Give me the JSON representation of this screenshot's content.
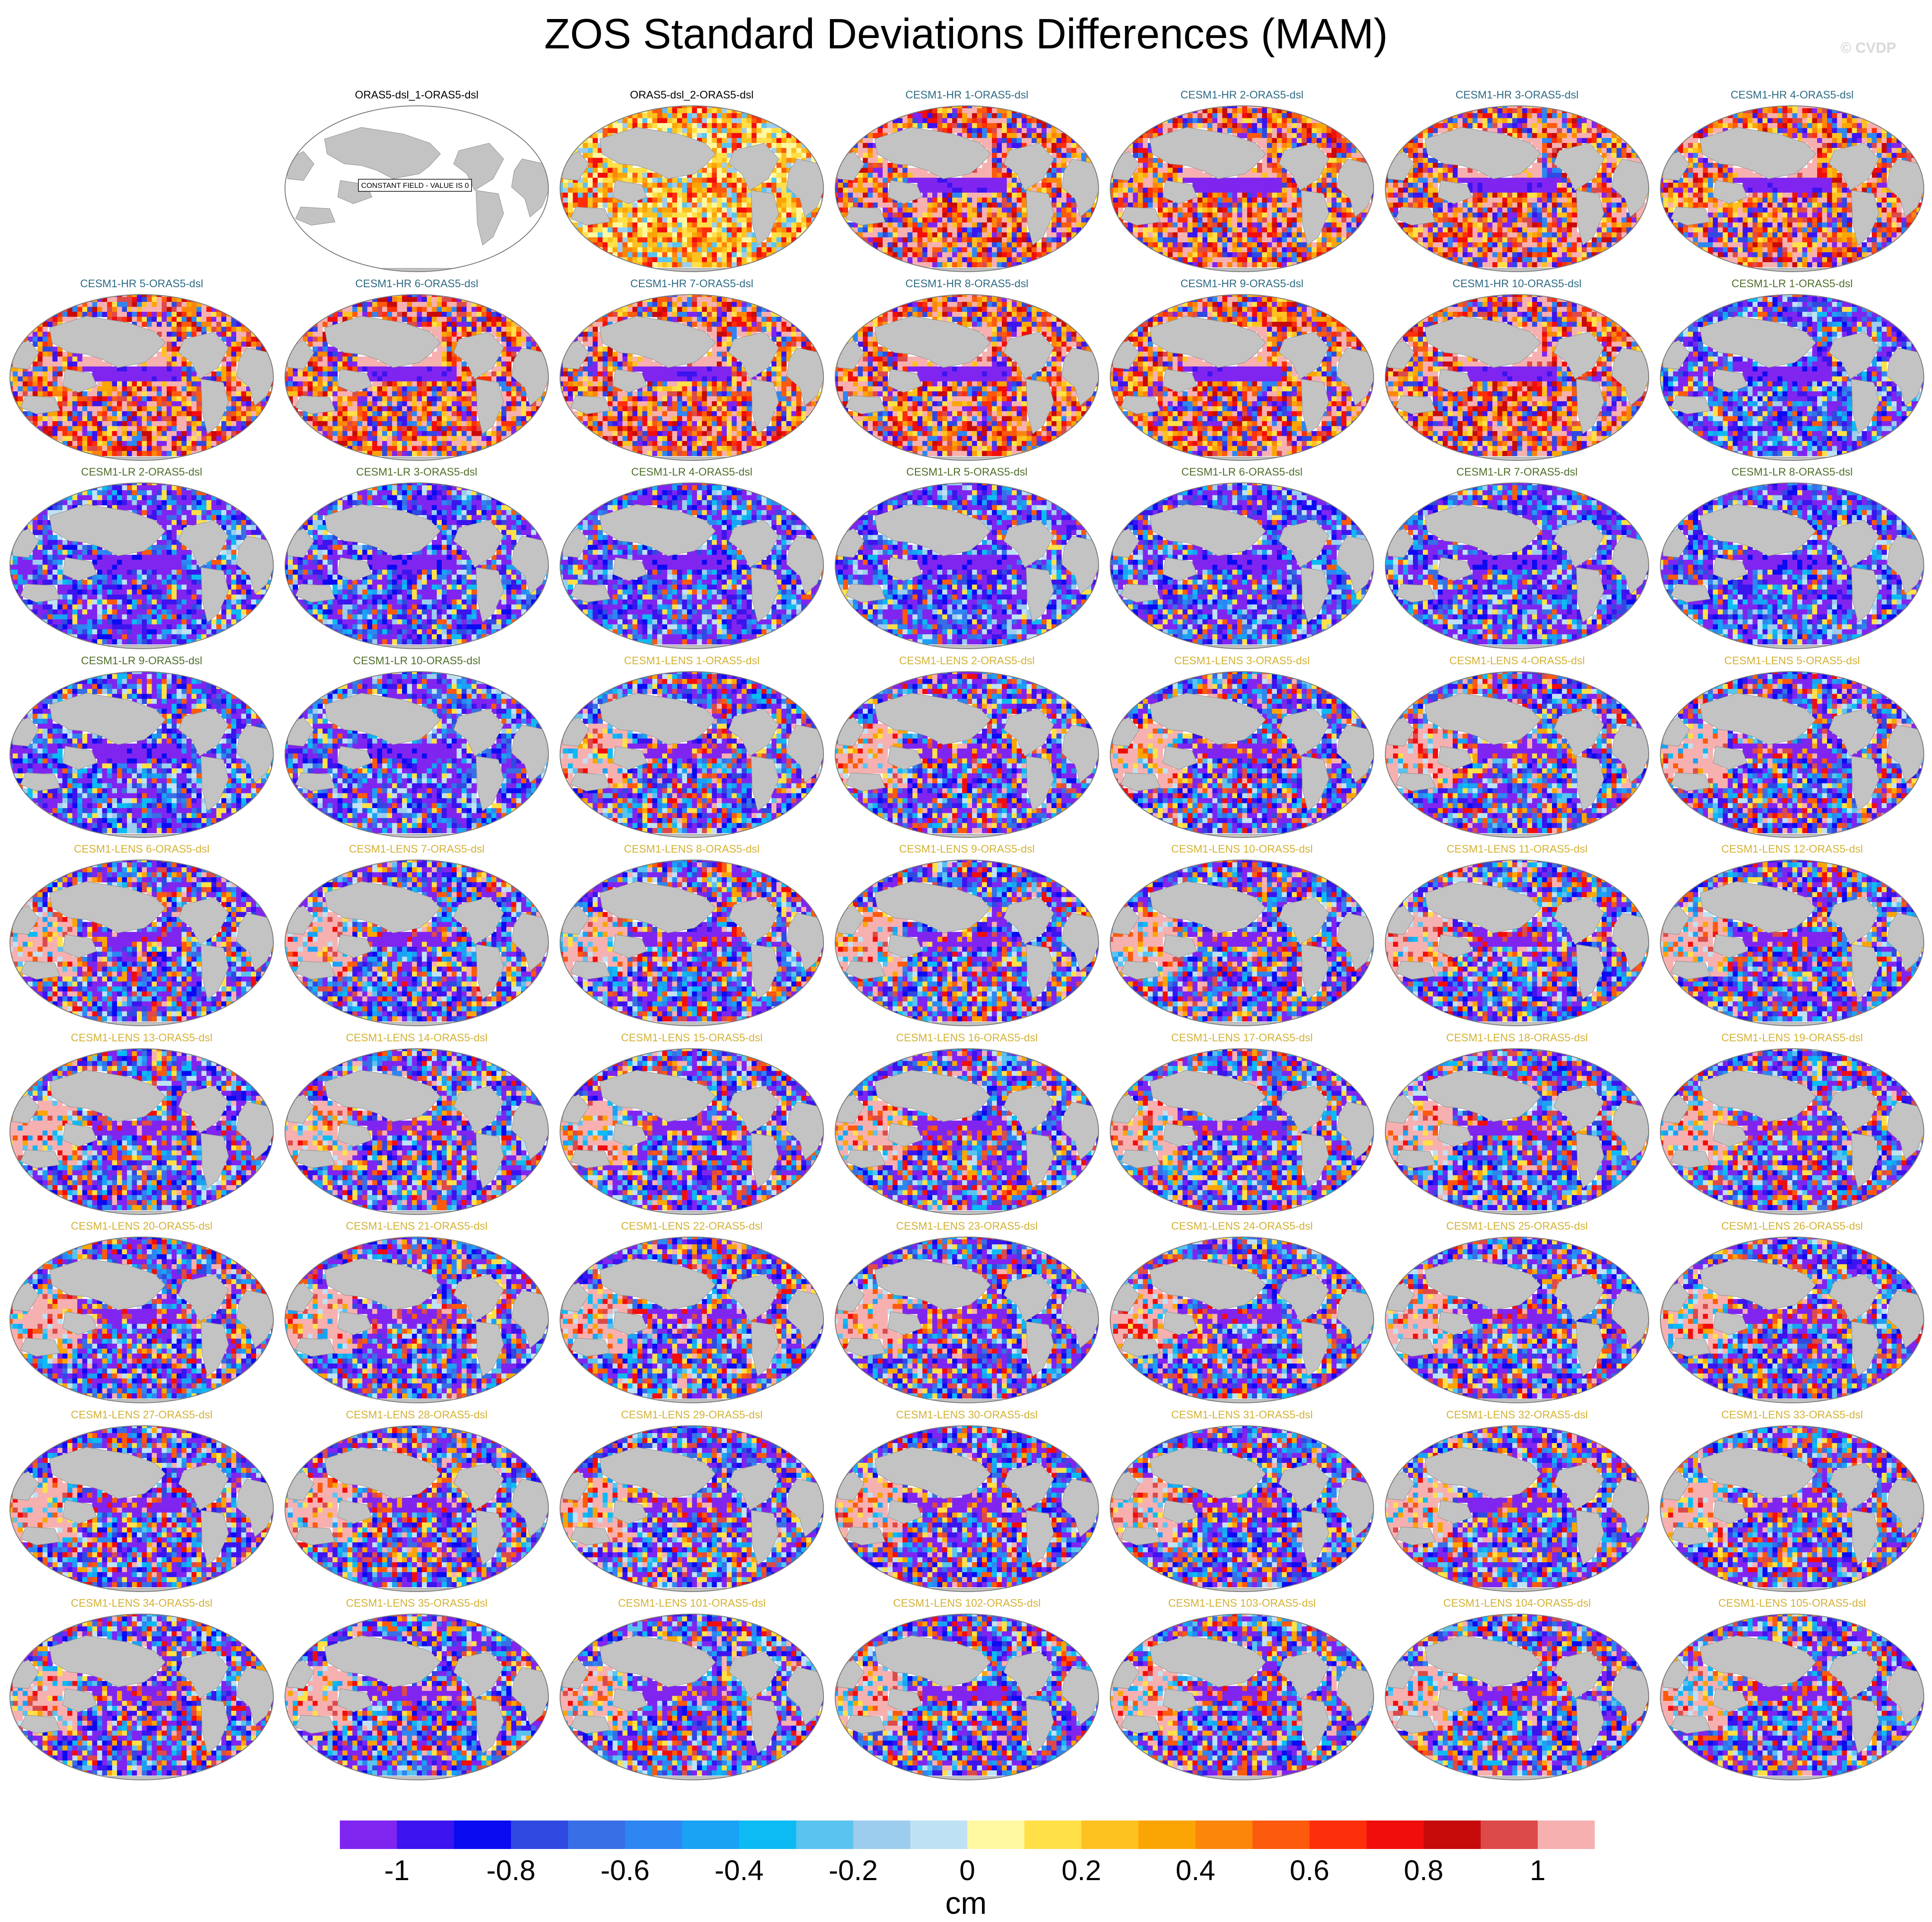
{
  "title": "ZOS Standard Deviations Differences (MAM)",
  "watermark": "© CVDP",
  "colors": {
    "land": "#c3c3c3",
    "map_outline": "#7a7a7a",
    "palette": [
      "#8025f0",
      "#3c14ee",
      "#0b0bf2",
      "#3049e0",
      "#386fe6",
      "#2e86f3",
      "#1aa2f4",
      "#0cbbf4",
      "#5ac3f0",
      "#9dcdee",
      "#bfe1f4",
      "#fff8a0",
      "#ffe048",
      "#fdc120",
      "#fba505",
      "#fc860a",
      "#fc5a0c",
      "#fc2f0a",
      "#f20d0d",
      "#c70a0a",
      "#dc4a4a",
      "#f7b0b0"
    ]
  },
  "colorbar": {
    "ticks": [
      "-1",
      "-0.8",
      "-0.6",
      "-0.4",
      "-0.2",
      "0",
      "0.2",
      "0.4",
      "0.6",
      "0.8",
      "1"
    ],
    "unit": "cm"
  },
  "panels": [
    {
      "label": "ORAS5-dsl_1-ORAS5-dsl",
      "group": "obs",
      "style": "constant",
      "constant_text": "CONSTANT FIELD - VALUE IS 0"
    },
    {
      "label": "ORAS5-dsl_2-ORAS5-dsl",
      "group": "obs",
      "style": "obs"
    },
    {
      "label": "CESM1-HR 1-ORAS5-dsl",
      "group": "hr",
      "style": "hr"
    },
    {
      "label": "CESM1-HR 2-ORAS5-dsl",
      "group": "hr",
      "style": "hr"
    },
    {
      "label": "CESM1-HR 3-ORAS5-dsl",
      "group": "hr",
      "style": "hr"
    },
    {
      "label": "CESM1-HR 4-ORAS5-dsl",
      "group": "hr",
      "style": "hr"
    },
    {
      "label": "CESM1-HR 5-ORAS5-dsl",
      "group": "hr",
      "style": "hr"
    },
    {
      "label": "CESM1-HR 6-ORAS5-dsl",
      "group": "hr",
      "style": "hr"
    },
    {
      "label": "CESM1-HR 7-ORAS5-dsl",
      "group": "hr",
      "style": "hr"
    },
    {
      "label": "CESM1-HR 8-ORAS5-dsl",
      "group": "hr",
      "style": "hr"
    },
    {
      "label": "CESM1-HR 9-ORAS5-dsl",
      "group": "hr",
      "style": "hr"
    },
    {
      "label": "CESM1-HR 10-ORAS5-dsl",
      "group": "hr",
      "style": "hr"
    },
    {
      "label": "CESM1-LR 1-ORAS5-dsl",
      "group": "lr",
      "style": "lr"
    },
    {
      "label": "CESM1-LR 2-ORAS5-dsl",
      "group": "lr",
      "style": "lr"
    },
    {
      "label": "CESM1-LR 3-ORAS5-dsl",
      "group": "lr",
      "style": "lr"
    },
    {
      "label": "CESM1-LR 4-ORAS5-dsl",
      "group": "lr",
      "style": "lr"
    },
    {
      "label": "CESM1-LR 5-ORAS5-dsl",
      "group": "lr",
      "style": "lr"
    },
    {
      "label": "CESM1-LR 6-ORAS5-dsl",
      "group": "lr",
      "style": "lr"
    },
    {
      "label": "CESM1-LR 7-ORAS5-dsl",
      "group": "lr",
      "style": "lr"
    },
    {
      "label": "CESM1-LR 8-ORAS5-dsl",
      "group": "lr",
      "style": "lr"
    },
    {
      "label": "CESM1-LR 9-ORAS5-dsl",
      "group": "lr",
      "style": "lr"
    },
    {
      "label": "CESM1-LR 10-ORAS5-dsl",
      "group": "lr",
      "style": "lr"
    },
    {
      "label": "CESM1-LENS 1-ORAS5-dsl",
      "group": "lens",
      "style": "lens"
    },
    {
      "label": "CESM1-LENS 2-ORAS5-dsl",
      "group": "lens",
      "style": "lens"
    },
    {
      "label": "CESM1-LENS 3-ORAS5-dsl",
      "group": "lens",
      "style": "lens"
    },
    {
      "label": "CESM1-LENS 4-ORAS5-dsl",
      "group": "lens",
      "style": "lens"
    },
    {
      "label": "CESM1-LENS 5-ORAS5-dsl",
      "group": "lens",
      "style": "lens"
    },
    {
      "label": "CESM1-LENS 6-ORAS5-dsl",
      "group": "lens",
      "style": "lens"
    },
    {
      "label": "CESM1-LENS 7-ORAS5-dsl",
      "group": "lens",
      "style": "lens"
    },
    {
      "label": "CESM1-LENS 8-ORAS5-dsl",
      "group": "lens",
      "style": "lens"
    },
    {
      "label": "CESM1-LENS 9-ORAS5-dsl",
      "group": "lens",
      "style": "lens"
    },
    {
      "label": "CESM1-LENS 10-ORAS5-dsl",
      "group": "lens",
      "style": "lens"
    },
    {
      "label": "CESM1-LENS 11-ORAS5-dsl",
      "group": "lens",
      "style": "lens"
    },
    {
      "label": "CESM1-LENS 12-ORAS5-dsl",
      "group": "lens",
      "style": "lens"
    },
    {
      "label": "CESM1-LENS 13-ORAS5-dsl",
      "group": "lens",
      "style": "lens"
    },
    {
      "label": "CESM1-LENS 14-ORAS5-dsl",
      "group": "lens",
      "style": "lens"
    },
    {
      "label": "CESM1-LENS 15-ORAS5-dsl",
      "group": "lens",
      "style": "lens"
    },
    {
      "label": "CESM1-LENS 16-ORAS5-dsl",
      "group": "lens",
      "style": "lens"
    },
    {
      "label": "CESM1-LENS 17-ORAS5-dsl",
      "group": "lens",
      "style": "lens"
    },
    {
      "label": "CESM1-LENS 18-ORAS5-dsl",
      "group": "lens",
      "style": "lens"
    },
    {
      "label": "CESM1-LENS 19-ORAS5-dsl",
      "group": "lens",
      "style": "lens"
    },
    {
      "label": "CESM1-LENS 20-ORAS5-dsl",
      "group": "lens",
      "style": "lens"
    },
    {
      "label": "CESM1-LENS 21-ORAS5-dsl",
      "group": "lens",
      "style": "lens"
    },
    {
      "label": "CESM1-LENS 22-ORAS5-dsl",
      "group": "lens",
      "style": "lens"
    },
    {
      "label": "CESM1-LENS 23-ORAS5-dsl",
      "group": "lens",
      "style": "lens"
    },
    {
      "label": "CESM1-LENS 24-ORAS5-dsl",
      "group": "lens",
      "style": "lens"
    },
    {
      "label": "CESM1-LENS 25-ORAS5-dsl",
      "group": "lens",
      "style": "lens"
    },
    {
      "label": "CESM1-LENS 26-ORAS5-dsl",
      "group": "lens",
      "style": "lens"
    },
    {
      "label": "CESM1-LENS 27-ORAS5-dsl",
      "group": "lens",
      "style": "lens"
    },
    {
      "label": "CESM1-LENS 28-ORAS5-dsl",
      "group": "lens",
      "style": "lens"
    },
    {
      "label": "CESM1-LENS 29-ORAS5-dsl",
      "group": "lens",
      "style": "lens"
    },
    {
      "label": "CESM1-LENS 30-ORAS5-dsl",
      "group": "lens",
      "style": "lens"
    },
    {
      "label": "CESM1-LENS 31-ORAS5-dsl",
      "group": "lens",
      "style": "lens"
    },
    {
      "label": "CESM1-LENS 32-ORAS5-dsl",
      "group": "lens",
      "style": "lens"
    },
    {
      "label": "CESM1-LENS 33-ORAS5-dsl",
      "group": "lens",
      "style": "lens"
    },
    {
      "label": "CESM1-LENS 34-ORAS5-dsl",
      "group": "lens",
      "style": "lens"
    },
    {
      "label": "CESM1-LENS 35-ORAS5-dsl",
      "group": "lens",
      "style": "lens"
    },
    {
      "label": "CESM1-LENS 101-ORAS5-dsl",
      "group": "lens",
      "style": "lens"
    },
    {
      "label": "CESM1-LENS 102-ORAS5-dsl",
      "group": "lens",
      "style": "lens"
    },
    {
      "label": "CESM1-LENS 103-ORAS5-dsl",
      "group": "lens",
      "style": "lens"
    },
    {
      "label": "CESM1-LENS 104-ORAS5-dsl",
      "group": "lens",
      "style": "lens"
    },
    {
      "label": "CESM1-LENS 105-ORAS5-dsl",
      "group": "lens",
      "style": "lens"
    }
  ]
}
